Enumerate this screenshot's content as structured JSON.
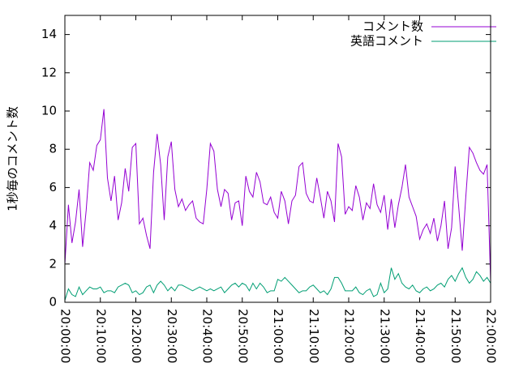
{
  "chart_data": {
    "type": "line",
    "y_label": "1秒毎のコメント数",
    "x": [
      "20:00:00",
      "20:01:00",
      "20:02:00",
      "20:03:00",
      "20:04:00",
      "20:05:00",
      "20:06:00",
      "20:07:00",
      "20:08:00",
      "20:09:00",
      "20:10:00",
      "20:11:00",
      "20:12:00",
      "20:13:00",
      "20:14:00",
      "20:15:00",
      "20:16:00",
      "20:17:00",
      "20:18:00",
      "20:19:00",
      "20:20:00",
      "20:21:00",
      "20:22:00",
      "20:23:00",
      "20:24:00",
      "20:25:00",
      "20:26:00",
      "20:27:00",
      "20:28:00",
      "20:29:00",
      "20:30:00",
      "20:31:00",
      "20:32:00",
      "20:33:00",
      "20:34:00",
      "20:35:00",
      "20:36:00",
      "20:37:00",
      "20:38:00",
      "20:39:00",
      "20:40:00",
      "20:41:00",
      "20:42:00",
      "20:43:00",
      "20:44:00",
      "20:45:00",
      "20:46:00",
      "20:47:00",
      "20:48:00",
      "20:49:00",
      "20:50:00",
      "20:51:00",
      "20:52:00",
      "20:53:00",
      "20:54:00",
      "20:55:00",
      "20:56:00",
      "20:57:00",
      "20:58:00",
      "20:59:00",
      "21:00:00",
      "21:01:00",
      "21:02:00",
      "21:03:00",
      "21:04:00",
      "21:05:00",
      "21:06:00",
      "21:07:00",
      "21:08:00",
      "21:09:00",
      "21:10:00",
      "21:11:00",
      "21:12:00",
      "21:13:00",
      "21:14:00",
      "21:15:00",
      "21:16:00",
      "21:17:00",
      "21:18:00",
      "21:19:00",
      "21:20:00",
      "21:21:00",
      "21:22:00",
      "21:23:00",
      "21:24:00",
      "21:25:00",
      "21:26:00",
      "21:27:00",
      "21:28:00",
      "21:29:00",
      "21:30:00",
      "21:31:00",
      "21:32:00",
      "21:33:00",
      "21:34:00",
      "21:35:00",
      "21:36:00",
      "21:37:00",
      "21:38:00",
      "21:39:00",
      "21:40:00",
      "21:41:00",
      "21:42:00",
      "21:43:00",
      "21:44:00",
      "21:45:00",
      "21:46:00",
      "21:47:00",
      "21:48:00",
      "21:49:00",
      "21:50:00",
      "21:51:00",
      "21:52:00",
      "21:53:00",
      "21:54:00",
      "21:55:00",
      "21:56:00",
      "21:57:00",
      "21:58:00",
      "21:59:00",
      "22:00:00"
    ],
    "series": [
      {
        "name": "コメント数",
        "color": "#9400d3",
        "values": [
          2.0,
          5.1,
          3.1,
          4.2,
          5.9,
          2.9,
          4.8,
          7.3,
          6.9,
          8.2,
          8.5,
          10.1,
          6.5,
          5.3,
          6.6,
          4.3,
          5.2,
          7.0,
          5.8,
          8.1,
          8.3,
          4.1,
          4.4,
          3.5,
          2.8,
          6.8,
          8.8,
          7.2,
          4.3,
          7.6,
          8.4,
          5.9,
          5.0,
          5.4,
          4.8,
          5.1,
          5.3,
          4.4,
          4.2,
          4.1,
          5.9,
          8.3,
          7.9,
          5.9,
          5.0,
          5.9,
          5.7,
          4.3,
          5.2,
          5.3,
          4.0,
          6.6,
          5.8,
          5.5,
          6.8,
          6.3,
          5.2,
          5.1,
          5.5,
          4.7,
          4.4,
          5.8,
          5.3,
          4.1,
          5.3,
          5.6,
          7.1,
          7.3,
          5.7,
          5.3,
          5.2,
          6.5,
          5.5,
          4.4,
          5.8,
          5.3,
          4.2,
          8.3,
          7.6,
          4.6,
          5.0,
          4.8,
          6.1,
          5.5,
          4.3,
          5.2,
          4.9,
          6.2,
          5.1,
          4.7,
          5.6,
          3.8,
          5.4,
          3.9,
          5.1,
          6.0,
          7.2,
          5.5,
          5.0,
          4.5,
          3.3,
          3.8,
          4.1,
          3.6,
          4.4,
          3.2,
          4.0,
          5.3,
          2.8,
          3.9,
          7.1,
          5.0,
          2.7,
          5.5,
          8.1,
          7.8,
          7.3,
          6.9,
          6.7,
          7.2,
          1.1
        ]
      },
      {
        "name": "英語コメント",
        "color": "#009e73",
        "values": [
          0.1,
          0.7,
          0.4,
          0.3,
          0.8,
          0.4,
          0.6,
          0.8,
          0.7,
          0.7,
          0.8,
          0.5,
          0.6,
          0.6,
          0.5,
          0.8,
          0.9,
          1.0,
          0.9,
          0.5,
          0.6,
          0.4,
          0.5,
          0.8,
          0.9,
          0.5,
          0.9,
          1.1,
          0.9,
          0.6,
          0.8,
          0.6,
          0.9,
          0.9,
          0.8,
          0.7,
          0.6,
          0.7,
          0.8,
          0.7,
          0.6,
          0.7,
          0.6,
          0.7,
          0.8,
          0.5,
          0.7,
          0.9,
          1.0,
          0.8,
          1.0,
          0.9,
          0.6,
          1.0,
          0.7,
          1.0,
          0.8,
          0.5,
          0.6,
          0.6,
          1.2,
          1.1,
          1.3,
          1.1,
          0.9,
          0.7,
          0.5,
          0.6,
          0.6,
          0.8,
          0.9,
          0.7,
          0.5,
          0.6,
          0.4,
          0.7,
          1.3,
          1.3,
          1.0,
          0.6,
          0.6,
          0.6,
          0.8,
          0.5,
          0.4,
          0.6,
          0.7,
          0.3,
          0.4,
          1.0,
          0.5,
          0.7,
          1.8,
          1.2,
          1.5,
          1.0,
          0.8,
          0.7,
          0.9,
          0.6,
          0.5,
          0.7,
          0.8,
          0.6,
          0.7,
          0.9,
          1.0,
          0.8,
          1.2,
          1.4,
          1.1,
          1.5,
          1.8,
          1.3,
          1.0,
          1.2,
          1.6,
          1.4,
          1.1,
          1.3,
          1.0
        ]
      }
    ],
    "xlim": [
      "20:00:00",
      "22:00:00"
    ],
    "xticks": [
      "20:00:00",
      "20:10:00",
      "20:20:00",
      "20:30:00",
      "20:40:00",
      "20:50:00",
      "21:00:00",
      "21:10:00",
      "21:20:00",
      "21:30:00",
      "21:40:00",
      "21:50:00",
      "22:00:00"
    ],
    "ylim": [
      0,
      15
    ],
    "yticks": [
      0,
      2,
      4,
      6,
      8,
      10,
      12,
      14
    ],
    "legend": "top-right"
  }
}
